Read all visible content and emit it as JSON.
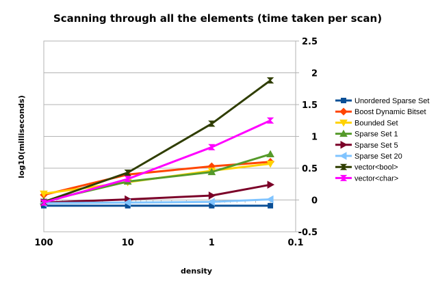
{
  "chart_data": {
    "type": "line",
    "title": "Scanning through all the elements (time taken per scan)",
    "xlabel": "density",
    "ylabel": "log10(milliseconds)",
    "x_scale": "log",
    "x_reversed": true,
    "xlim": [
      100,
      0.1
    ],
    "ylim": [
      -0.5,
      2.5
    ],
    "x_ticks": [
      100,
      10,
      1,
      0.1
    ],
    "x_tick_labels": [
      "100",
      "10",
      "1",
      "0.1"
    ],
    "y_ticks": [
      -0.5,
      0,
      0.5,
      1,
      1.5,
      2,
      2.5
    ],
    "y_tick_labels": [
      "-0.5",
      "0",
      "0.5",
      "1",
      "1.5",
      "2",
      "2.5"
    ],
    "y_axis_side": "right",
    "grid": "horizontal",
    "legend_position": "right",
    "x": [
      100,
      10,
      1,
      0.2
    ],
    "series": [
      {
        "name": "Unordered Sparse Set",
        "color": "#0a4f96",
        "marker": "square",
        "values": [
          -0.09,
          -0.09,
          -0.09,
          -0.09
        ]
      },
      {
        "name": "Boost Dynamic Bitset",
        "color": "#ff4500",
        "marker": "diamond",
        "values": [
          0.08,
          0.4,
          0.53,
          0.6
        ]
      },
      {
        "name": "Bounded Set",
        "color": "#ffd200",
        "marker": "triangle-down",
        "values": [
          0.1,
          0.28,
          0.46,
          0.57
        ]
      },
      {
        "name": "Sparse Set 1",
        "color": "#559a2a",
        "marker": "triangle-up",
        "values": [
          -0.02,
          0.29,
          0.44,
          0.72
        ]
      },
      {
        "name": "Sparse Set 5",
        "color": "#7b0028",
        "marker": "triangle-right",
        "values": [
          -0.04,
          0.01,
          0.07,
          0.24
        ]
      },
      {
        "name": "Sparse Set 20",
        "color": "#80c4ff",
        "marker": "triangle-left",
        "values": [
          -0.05,
          -0.04,
          -0.03,
          0.01
        ]
      },
      {
        "name": "vector<bool>",
        "color": "#2f3d00",
        "marker": "hourglass",
        "values": [
          -0.03,
          0.43,
          1.2,
          1.88
        ]
      },
      {
        "name": "vector<char>",
        "color": "#ff00ff",
        "marker": "hourglass",
        "values": [
          -0.04,
          0.33,
          0.83,
          1.25
        ]
      }
    ]
  }
}
